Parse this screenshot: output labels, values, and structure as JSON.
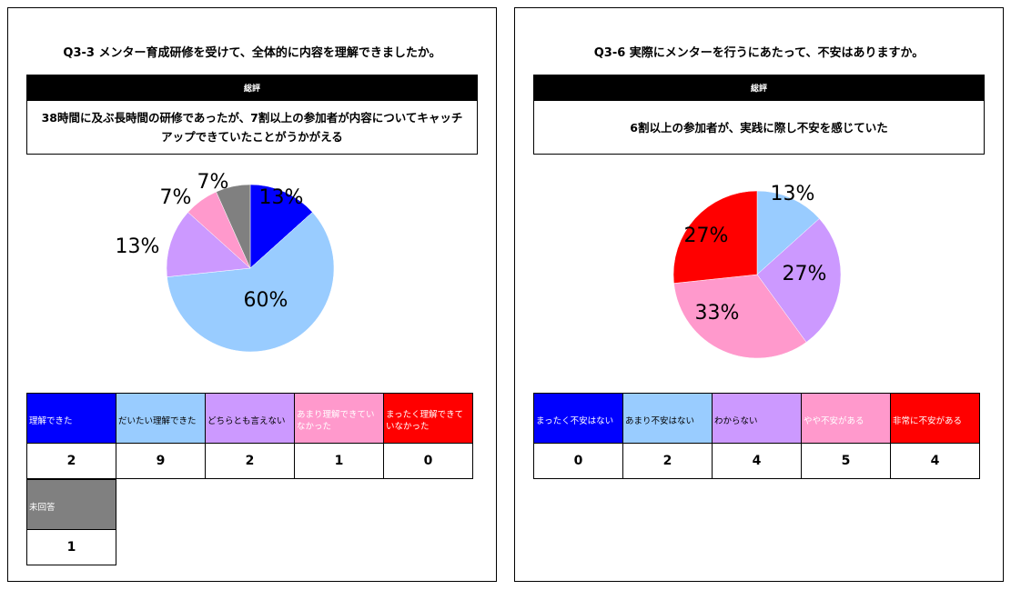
{
  "panels": [
    {
      "title": "Q3-3 メンター育成研修を受けて、全体的に内容を理解できましたか。",
      "summary_header": "総評",
      "summary_text": "38時間に及ぶ長時間の研修であったが、7割以上の参加者が内容についてキャッチアップできていたことがうかがえる",
      "categories": [
        "理解できた",
        "だいたい理解できた",
        "どちらとも言えない",
        "あまり理解できていなかった",
        "まったく理解できていなかった",
        "未回答"
      ],
      "counts": [
        "2",
        "9",
        "2",
        "1",
        "0",
        "1"
      ]
    },
    {
      "title": "Q3-6 実際にメンターを行うにあたって、不安はありますか。",
      "summary_header": "総評",
      "summary_text": "6割以上の参加者が、実践に際し不安を感じていた",
      "categories": [
        "まったく不安はない",
        "あまり不安はない",
        "わからない",
        "やや不安がある",
        "非常に不安がある"
      ],
      "counts": [
        "0",
        "2",
        "4",
        "5",
        "4"
      ]
    }
  ],
  "chart_data": [
    {
      "type": "pie",
      "title": "Q3-3 メンター育成研修を受けて、全体的に内容を理解できましたか。",
      "categories": [
        "理解できた",
        "だいたい理解できた",
        "どちらとも言えない",
        "あまり理解できていなかった",
        "まったく理解できていなかった",
        "未回答"
      ],
      "values": [
        2,
        9,
        2,
        1,
        0,
        1
      ],
      "labels": [
        "13%",
        "60%",
        "13%",
        "7%",
        "",
        "7%"
      ],
      "colors": [
        "#0000ff",
        "#99ccff",
        "#cc99ff",
        "#ff99cc",
        "#ff0000",
        "#808080"
      ]
    },
    {
      "type": "pie",
      "title": "Q3-6 実際にメンターを行うにあたって、不安はありますか。",
      "categories": [
        "まったく不安はない",
        "あまり不安はない",
        "わからない",
        "やや不安がある",
        "非常に不安がある"
      ],
      "values": [
        0,
        2,
        4,
        5,
        4
      ],
      "labels": [
        "",
        "13%",
        "27%",
        "33%",
        "27%"
      ],
      "colors": [
        "#0000ff",
        "#99ccff",
        "#cc99ff",
        "#ff99cc",
        "#ff0000"
      ]
    }
  ]
}
